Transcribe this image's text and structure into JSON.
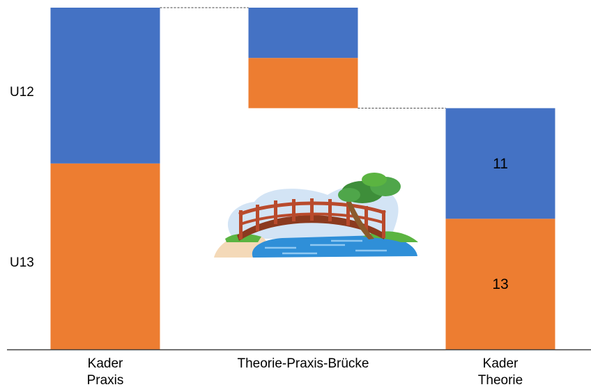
{
  "chart_data": {
    "type": "bar",
    "subtype": "waterfall",
    "categories": [
      "Kader\nPraxis",
      "Theorie-Praxis-Brücke",
      "Kader\nTheorie"
    ],
    "category_lines": [
      [
        "Kader",
        "Praxis"
      ],
      [
        "Theorie-Praxis-Brücke"
      ],
      [
        "Kader",
        "Theorie"
      ]
    ],
    "y_tick_labels": [
      "U12",
      "U13"
    ],
    "total": 34,
    "bars": [
      {
        "category": "Kader Praxis",
        "base": 0,
        "segments": [
          {
            "series": "U13",
            "value": 18.5,
            "color": "#ED7D31",
            "label": ""
          },
          {
            "series": "U12",
            "value": 15.5,
            "color": "#4472C4",
            "label": ""
          }
        ]
      },
      {
        "category": "Theorie-Praxis-Brücke",
        "base": 24,
        "segments": [
          {
            "series": "U13",
            "value": 5,
            "color": "#ED7D31",
            "label": ""
          },
          {
            "series": "U12",
            "value": 5,
            "color": "#4472C4",
            "label": ""
          }
        ]
      },
      {
        "category": "Kader Theorie",
        "base": 0,
        "segments": [
          {
            "series": "U13",
            "value": 13,
            "color": "#ED7D31",
            "label": "13"
          },
          {
            "series": "U12",
            "value": 11,
            "color": "#4472C4",
            "label": "11"
          }
        ]
      }
    ],
    "colors": {
      "U12": "#4472C4",
      "U13": "#ED7D31"
    },
    "connectors": "dashed",
    "grid": false,
    "legend": "none",
    "illustration": "bridge-over-water-icon"
  }
}
